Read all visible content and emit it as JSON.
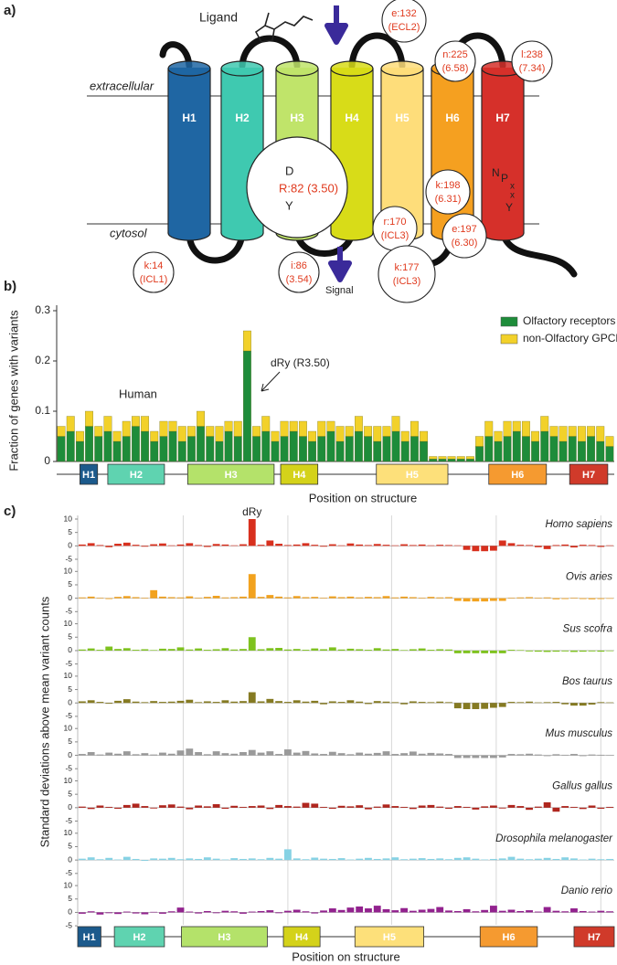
{
  "panel_a": {
    "label": "a)",
    "ligand": "Ligand",
    "signal": "Signal",
    "extracellular": "extracellular",
    "cytosol": "cytosol",
    "helices": [
      {
        "label": "H1",
        "color": "#1f66a3"
      },
      {
        "label": "H2",
        "color": "#3fc9b0"
      },
      {
        "label": "H3",
        "color": "#c0e46a"
      },
      {
        "label": "H4",
        "color": "#d8dc18"
      },
      {
        "label": "H5",
        "color": "#fedd7a"
      },
      {
        "label": "H6",
        "color": "#f5a020"
      },
      {
        "label": "H7",
        "color": "#d6302a"
      }
    ],
    "dry": {
      "top": "D",
      "middle": "R:82 (3.50)",
      "bottom": "Y"
    },
    "npxxy": [
      "N",
      "P",
      "x",
      "x",
      "Y"
    ],
    "variants": [
      {
        "name": "e:132",
        "position": "(ECL2)"
      },
      {
        "name": "n:225",
        "position": "(6.58)"
      },
      {
        "name": "l:238",
        "position": "(7.34)"
      },
      {
        "name": "k:198",
        "position": "(6.31)"
      },
      {
        "name": "e:197",
        "position": "(6.30)"
      },
      {
        "name": "r:170",
        "position": "(ICL3)"
      },
      {
        "name": "k:177",
        "position": "(ICL3)"
      },
      {
        "name": "k:14",
        "position": "(ICL1)"
      },
      {
        "name": "i:86",
        "position": "(3.54)"
      }
    ]
  },
  "chart_data": [
    {
      "type": "bar",
      "panel_label": "b)",
      "stacked": true,
      "ylabel": "Fraction of genes with variants",
      "xlabel": "Position on structure",
      "annotations": [
        "Human",
        "dRy (R3.50)"
      ],
      "xlim": [
        0,
        60
      ],
      "ylim": [
        0,
        0.3
      ],
      "yticks": [
        0,
        0.1,
        0.2,
        0.3
      ],
      "legend": "top-right",
      "series": [
        {
          "name": "Olfactory receptors",
          "color": "#1e8c3a",
          "values": [
            0.05,
            0.06,
            0.04,
            0.07,
            0.05,
            0.06,
            0.04,
            0.05,
            0.07,
            0.06,
            0.04,
            0.05,
            0.06,
            0.04,
            0.05,
            0.07,
            0.05,
            0.04,
            0.06,
            0.05,
            0.22,
            0.05,
            0.06,
            0.04,
            0.05,
            0.06,
            0.05,
            0.04,
            0.05,
            0.06,
            0.04,
            0.05,
            0.06,
            0.05,
            0.04,
            0.05,
            0.06,
            0.04,
            0.05,
            0.04,
            0.005,
            0.005,
            0.005,
            0.005,
            0.005,
            0.03,
            0.05,
            0.04,
            0.05,
            0.06,
            0.05,
            0.04,
            0.06,
            0.05,
            0.04,
            0.05,
            0.04,
            0.05,
            0.04,
            0.03
          ]
        },
        {
          "name": "non-Olfactory GPCRs",
          "color": "#f2d12a",
          "values": [
            0.02,
            0.03,
            0.02,
            0.03,
            0.02,
            0.03,
            0.02,
            0.03,
            0.02,
            0.03,
            0.02,
            0.03,
            0.02,
            0.03,
            0.02,
            0.03,
            0.02,
            0.03,
            0.02,
            0.03,
            0.04,
            0.02,
            0.03,
            0.02,
            0.03,
            0.02,
            0.03,
            0.02,
            0.03,
            0.02,
            0.03,
            0.02,
            0.03,
            0.02,
            0.03,
            0.02,
            0.03,
            0.02,
            0.03,
            0.02,
            0.005,
            0.005,
            0.005,
            0.005,
            0.005,
            0.02,
            0.03,
            0.02,
            0.03,
            0.02,
            0.03,
            0.02,
            0.03,
            0.02,
            0.03,
            0.02,
            0.03,
            0.02,
            0.03,
            0.02
          ]
        }
      ],
      "segments": [
        {
          "label": "H1",
          "start": 2.5,
          "end": 4.4,
          "color": "#1c5a8c"
        },
        {
          "label": "H2",
          "start": 5.5,
          "end": 11.6,
          "color": "#5fd3b0"
        },
        {
          "label": "H3",
          "start": 14.1,
          "end": 23.4,
          "color": "#b4e26a"
        },
        {
          "label": "H4",
          "start": 24.1,
          "end": 28.1,
          "color": "#d4d21a"
        },
        {
          "label": "H5",
          "start": 34.4,
          "end": 42.1,
          "color": "#fde07a"
        },
        {
          "label": "H6",
          "start": 46.5,
          "end": 52.7,
          "color": "#f59a30"
        },
        {
          "label": "H7",
          "start": 55.2,
          "end": 59.3,
          "color": "#d03a2a"
        }
      ]
    },
    {
      "type": "bar",
      "panel_label": "c)",
      "facets": true,
      "ylabel": "Standard deviations above mean variant counts",
      "xlabel": "Position on structure",
      "annotations": [
        "dRy"
      ],
      "xlim": [
        0,
        60
      ],
      "ylim": [
        -5,
        10
      ],
      "yticks": [
        -5,
        0,
        5,
        10
      ],
      "xgrid": [
        11.8,
        23.5,
        35.1,
        46.8,
        58.5
      ],
      "series": [
        {
          "name": "Homo sapiens",
          "color": "#d8301e",
          "values": [
            0.5,
            1,
            0.3,
            -0.5,
            0.8,
            1.2,
            0.4,
            -0.3,
            0.6,
            0.9,
            0.2,
            0.5,
            1,
            0.3,
            -0.4,
            0.7,
            0.5,
            0.2,
            0.6,
            10,
            0.4,
            2,
            0.8,
            0.3,
            0.5,
            1,
            0.4,
            -0.3,
            0.6,
            0.2,
            0.9,
            0.5,
            0.3,
            0.7,
            0.4,
            0.2,
            0.6,
            0.3,
            0.5,
            0.2,
            0.4,
            0.3,
            0.2,
            -1.5,
            -2,
            -2,
            -1.8,
            2,
            1,
            0.4,
            0.3,
            -0.5,
            -1.2,
            0.3,
            0.5,
            -0.6,
            0.4,
            0.3,
            -0.4,
            0.2
          ]
        },
        {
          "name": "Ovis aries",
          "color": "#f2a21e",
          "values": [
            0.3,
            0.6,
            0.2,
            -0.3,
            0.5,
            0.8,
            0.4,
            0.2,
            3,
            0.6,
            0.4,
            0.3,
            0.7,
            0.2,
            0.5,
            0.9,
            0.3,
            0.4,
            0.6,
            9,
            0.5,
            1.2,
            0.6,
            0.3,
            0.8,
            0.4,
            0.5,
            0.2,
            0.7,
            0.4,
            0.6,
            0.3,
            0.5,
            0.4,
            0.8,
            0.3,
            0.6,
            0.4,
            0.2,
            0.5,
            0.3,
            0.4,
            -1,
            -1.2,
            -1.2,
            -1.2,
            -1,
            -1,
            0.2,
            0.3,
            0.4,
            0.2,
            0.3,
            -0.4,
            -0.3,
            0.2,
            -0.3,
            -0.4,
            -0.3,
            -0.2
          ]
        },
        {
          "name": "Sus scofra",
          "color": "#7ec21e",
          "values": [
            0.4,
            0.8,
            0.3,
            1.5,
            0.6,
            0.9,
            0.3,
            0.5,
            0.2,
            0.7,
            0.6,
            1.2,
            0.4,
            0.8,
            0.3,
            0.5,
            0.9,
            0.4,
            0.6,
            5,
            0.5,
            0.9,
            1,
            0.4,
            0.6,
            0.3,
            0.8,
            0.5,
            1.2,
            0.4,
            0.7,
            0.5,
            0.3,
            0.9,
            0.4,
            0.6,
            0.2,
            0.5,
            0.8,
            0.3,
            0.5,
            0.4,
            -1,
            -1,
            -1,
            -1,
            -1,
            -1,
            0.3,
            0.2,
            -0.3,
            -0.4,
            -0.5,
            -0.4,
            -0.3,
            -0.5,
            -0.4,
            -0.3,
            -0.4,
            -0.2
          ]
        },
        {
          "name": "Bos taurus",
          "color": "#857a22",
          "values": [
            0.6,
            1,
            0.4,
            -0.3,
            0.8,
            1.4,
            0.5,
            0.3,
            0.7,
            0.4,
            0.5,
            0.8,
            1.2,
            0.3,
            0.6,
            0.4,
            1,
            0.5,
            0.7,
            4,
            0.6,
            1.5,
            0.7,
            0.4,
            1,
            0.5,
            0.8,
            -0.5,
            0.6,
            0.4,
            1,
            0.5,
            -0.4,
            0.7,
            0.5,
            0.3,
            -0.5,
            0.6,
            0.4,
            0.3,
            0.5,
            0.3,
            -2,
            -2.3,
            -2.3,
            -2.2,
            -1.8,
            -1.5,
            0.4,
            0.3,
            0.5,
            0.2,
            0.3,
            0.4,
            -0.5,
            -1,
            -1,
            -0.6,
            0.3,
            0.2
          ]
        },
        {
          "name": "Mus musculus",
          "color": "#9a9a9a",
          "values": [
            0.5,
            1.2,
            0.3,
            1,
            0.6,
            1.5,
            0.4,
            0.8,
            0.3,
            1,
            0.6,
            1.8,
            2.5,
            1.2,
            0.4,
            1.5,
            0.8,
            0.6,
            1.2,
            2,
            1,
            1.5,
            0.5,
            2.2,
            1,
            1.6,
            0.7,
            0.5,
            1.3,
            0.8,
            0.4,
            1,
            0.6,
            0.9,
            1.5,
            0.5,
            0.8,
            1.4,
            0.6,
            0.9,
            0.7,
            0.5,
            -1,
            -1,
            -1,
            -1,
            -1,
            -0.8,
            0.5,
            0.4,
            0.6,
            0.3,
            -0.3,
            0.4,
            0.2,
            0.5,
            -0.3,
            0.3,
            0.2,
            0.1
          ]
        },
        {
          "name": "Gallus gallus",
          "color": "#b0261e",
          "values": [
            0.4,
            -0.5,
            0.8,
            0.3,
            -0.4,
            1,
            1.5,
            0.6,
            -0.3,
            0.9,
            1.2,
            0.4,
            -0.6,
            0.8,
            0.5,
            1.3,
            -0.4,
            0.7,
            0.3,
            0.6,
            0.8,
            -0.5,
            1,
            0.6,
            0.4,
            1.8,
            1.5,
            0.3,
            -0.4,
            0.7,
            0.5,
            0.9,
            -0.6,
            0.4,
            1.2,
            0.6,
            0.3,
            -0.5,
            0.8,
            1,
            0.4,
            -0.4,
            0.6,
            0.3,
            -0.7,
            0.5,
            0.8,
            -0.3,
            1,
            0.6,
            -0.8,
            0.4,
            2,
            -1.5,
            0.6,
            0.3,
            -0.5,
            0.8,
            -0.4,
            0.3
          ]
        },
        {
          "name": "Drosophila melanogaster",
          "color": "#86d2e4",
          "values": [
            0.5,
            1,
            0.3,
            0.8,
            0.2,
            1.2,
            0.4,
            -0.3,
            0.6,
            0.5,
            0.8,
            0.3,
            0.6,
            0.4,
            1,
            0.5,
            0.2,
            0.7,
            0.4,
            0.6,
            0.3,
            0.8,
            0.5,
            4,
            0.6,
            0.3,
            0.9,
            0.5,
            0.4,
            0.7,
            0.2,
            0.5,
            0.8,
            0.4,
            0.6,
            1,
            0.3,
            0.5,
            0.7,
            0.4,
            0.6,
            0.3,
            0.8,
            1,
            0.5,
            0.2,
            0.4,
            0.6,
            1.2,
            0.5,
            0.3,
            0.5,
            0.8,
            0.4,
            1,
            0.6,
            0.2,
            0.5,
            0.3,
            0.4
          ]
        },
        {
          "name": "Danio rerio",
          "color": "#92228e",
          "values": [
            -0.5,
            0.4,
            -0.8,
            -0.3,
            -0.6,
            0.3,
            -0.4,
            -0.7,
            0.2,
            -0.5,
            0.4,
            1.8,
            0.3,
            -0.4,
            0.5,
            -0.3,
            0.6,
            0.4,
            -0.5,
            0.3,
            0.5,
            0.8,
            -0.3,
            0.6,
            1,
            0.4,
            -0.4,
            0.7,
            1.5,
            0.9,
            1.8,
            2.2,
            1.5,
            2.5,
            1.2,
            0.8,
            1.6,
            0.6,
            1,
            1.3,
            2,
            0.7,
            0.5,
            1.2,
            0.4,
            0.9,
            2.5,
            0.6,
            1,
            0.5,
            0.8,
            0.3,
            2,
            0.6,
            0.4,
            1.5,
            0.5,
            0.3,
            0.6,
            0.4
          ]
        }
      ],
      "segments": [
        {
          "label": "H1",
          "start": 0,
          "end": 2.6,
          "color": "#1c5a8c"
        },
        {
          "label": "H2",
          "start": 4.1,
          "end": 9.7,
          "color": "#5fd3b0"
        },
        {
          "label": "H3",
          "start": 11.6,
          "end": 21.2,
          "color": "#b4e26a"
        },
        {
          "label": "H4",
          "start": 23,
          "end": 27.1,
          "color": "#d4d21a"
        },
        {
          "label": "H5",
          "start": 31,
          "end": 38.7,
          "color": "#fde07a"
        },
        {
          "label": "H6",
          "start": 45,
          "end": 51.4,
          "color": "#f59a30"
        },
        {
          "label": "H7",
          "start": 55.5,
          "end": 60,
          "color": "#d03a2a"
        }
      ]
    }
  ]
}
